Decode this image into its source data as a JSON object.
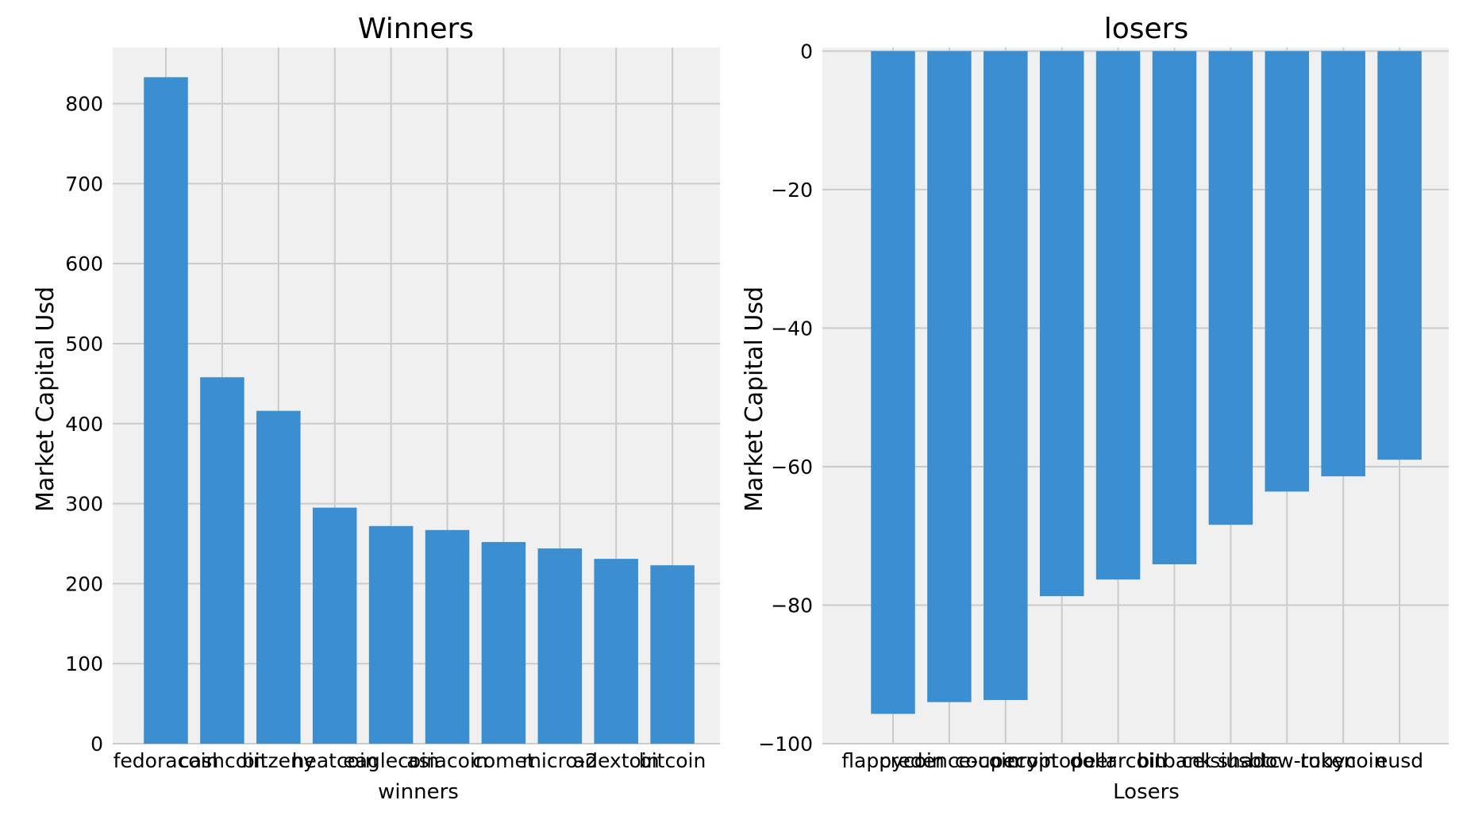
{
  "chart_data": [
    {
      "type": "bar",
      "title": "Winners",
      "xlabel": "winners",
      "ylabel": "Market Capital Usd",
      "ylim": [
        0,
        870
      ],
      "yticks": [
        0,
        100,
        200,
        300,
        400,
        500,
        600,
        700,
        800
      ],
      "ytick_labels": [
        "0",
        "100",
        "200",
        "300",
        "400",
        "500",
        "600",
        "700",
        "800"
      ],
      "grid": true,
      "categories": [
        "fedoracoin",
        "cashcoin",
        "bitzeny",
        "heatcoin",
        "eaglecoin",
        "asiacoin",
        "comet",
        "micro-2",
        "adextoin",
        "bitcoin"
      ],
      "values": [
        833,
        458,
        416,
        295,
        272,
        267,
        252,
        244,
        231,
        223
      ],
      "color": "#3b8ed0"
    },
    {
      "type": "bar",
      "title": "losers",
      "xlabel": "Losers",
      "ylabel": "Market Capital Usd",
      "ylim": [
        -100,
        0.5
      ],
      "yticks": [
        0,
        -20,
        -40,
        -60,
        -80,
        -100
      ],
      "ytick_labels": [
        "0",
        "−20",
        "−40",
        "−60",
        "−80",
        "−100"
      ],
      "grid": true,
      "categories": [
        "flappycoin",
        "credence-coin",
        "coupecoin",
        "cryptopeer",
        "dollarcoin",
        "bitbank",
        "celsiusbtc",
        "shadow-token",
        "rubycoin",
        "eusd"
      ],
      "values": [
        -95.7,
        -94.0,
        -93.7,
        -78.7,
        -76.3,
        -74.1,
        -68.4,
        -63.6,
        -61.4,
        -59.0
      ],
      "color": "#3b8ed0"
    }
  ]
}
